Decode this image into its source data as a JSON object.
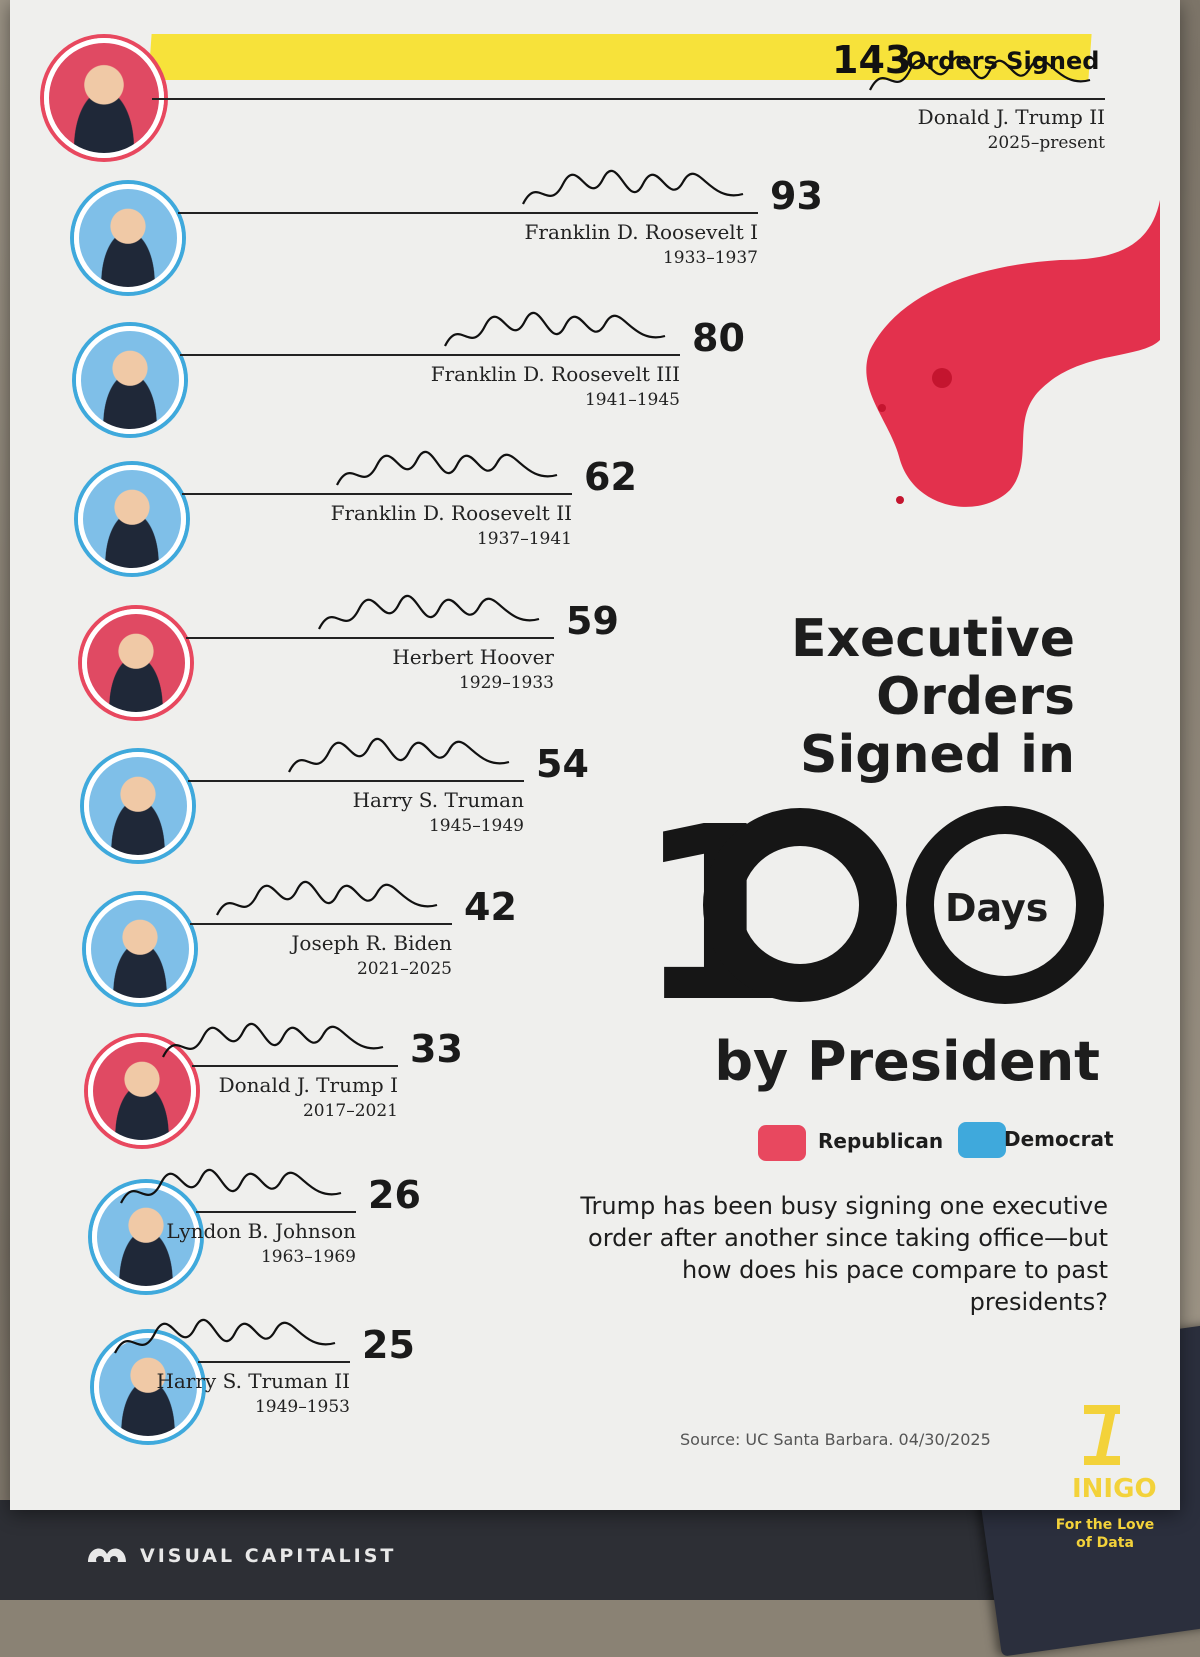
{
  "title": {
    "lines": [
      "Executive",
      "Orders",
      "Signed in"
    ],
    "big_number": "100",
    "big_inner": "Days",
    "by_line": "by President"
  },
  "subtitle": "Trump has been busy signing one executive order after another since taking office—but how does his pace compare to past presidents?",
  "source": "Source: UC Santa Barbara. 04/30/2025",
  "legend": [
    {
      "label": "Republican",
      "color": "#e8485f"
    },
    {
      "label": "Democrat",
      "color": "#3fa9dc"
    }
  ],
  "top_suffix": "Orders Signed",
  "brand": {
    "visual_capitalist": "VISUAL CAPITALIST",
    "inigo": "INIGO",
    "inigo_tagline": "For the Love of Data"
  },
  "colors": {
    "republican": "#e8485f",
    "democrat": "#3fa9dc",
    "highlight": "#f7e23a"
  },
  "chart_data": {
    "type": "bar",
    "title": "Executive Orders Signed in 100 Days by President",
    "categories": [
      "Donald J. Trump II",
      "Franklin D. Roosevelt I",
      "Franklin D. Roosevelt III",
      "Franklin D. Roosevelt II",
      "Herbert Hoover",
      "Harry S. Truman",
      "Joseph R. Biden",
      "Donald J. Trump I",
      "Lyndon B. Johnson",
      "Harry S. Truman II"
    ],
    "values": [
      143,
      93,
      80,
      62,
      59,
      54,
      42,
      33,
      26,
      25
    ],
    "years": [
      "2025–present",
      "1933–1937",
      "1941–1945",
      "1937–1941",
      "1929–1933",
      "1945–1949",
      "2021–2025",
      "2017–2021",
      "1963–1969",
      "1949–1953"
    ],
    "party": [
      "Republican",
      "Democrat",
      "Democrat",
      "Democrat",
      "Republican",
      "Democrat",
      "Democrat",
      "Republican",
      "Democrat",
      "Democrat"
    ],
    "legend_position": "right",
    "xlabel": "",
    "ylabel": ""
  }
}
